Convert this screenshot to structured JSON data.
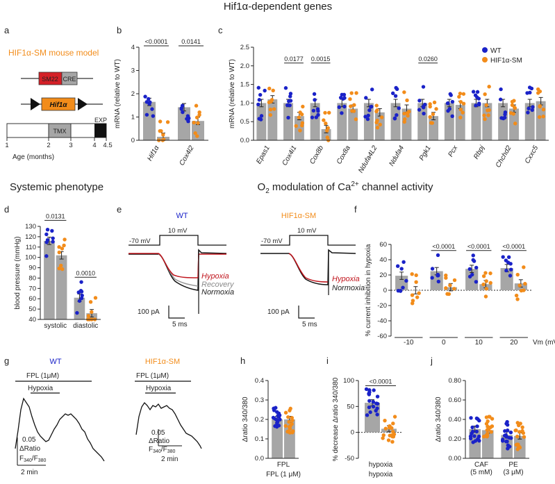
{
  "colors": {
    "wt": "#1a22c8",
    "hif": "#f28c1a",
    "bar": "#a6a6a6",
    "hypoxia": "#c0141c",
    "recovery": "#8a8a8a",
    "normoxia": "#111111",
    "sm22": "#d42027",
    "cre": "#a6a6a6",
    "exp": "#111111"
  },
  "titles": {
    "top": "Hif1α-dependent genes",
    "systemic": "Systemic phenotype",
    "o2_prefix": "O",
    "o2_sub": "2",
    "o2_mid": " modulation of Ca",
    "o2_sup": "2+",
    "o2_suffix": " channel activity"
  },
  "panel_letters": {
    "a": "a",
    "b": "b",
    "c": "c",
    "d": "d",
    "e": "e",
    "f": "f",
    "g": "g",
    "h": "h",
    "i": "i",
    "j": "j"
  },
  "panel_a": {
    "model_title": "HIF1α-SM mouse model",
    "sm22": "SM22",
    "cre": "CRE",
    "hif_gene": "Hif1α",
    "tmx": "TMX",
    "exp": "EXP",
    "ticks": [
      "1",
      "2",
      "3",
      "4",
      "4.5"
    ],
    "xlabel": "Age (months)"
  },
  "panel_e": {
    "wt_title": "WT",
    "hif_title": "HIF1α-SM",
    "hold": "-70 mV",
    "step": "10 mV",
    "hypoxia": "Hypoxia",
    "recovery": "Recovery",
    "normoxia": "Normoxia",
    "scale_current": "100 pA",
    "scale_time": "5 ms"
  },
  "panel_g": {
    "wt_title": "WT",
    "hif_title": "HIF1α-SM",
    "fpl": "FPL  (1μM)",
    "hypoxia": "Hypoxia",
    "scale_val": "0.05",
    "scale_ratio": "ΔRatio",
    "f340": "F",
    "f340_sub": "340",
    "slash": "/",
    "f380": "F",
    "f380_sub": "380",
    "scale_time": "2 min"
  },
  "chart_data": [
    {
      "id": "b",
      "type": "bar",
      "ylabel": "mRNA (relative to WT)",
      "ylim": [
        0,
        4
      ],
      "yticks": [
        "0",
        "1",
        "2",
        "3",
        "4"
      ],
      "categories": [
        "Hif1α",
        "Cox4l2"
      ],
      "series": [
        {
          "name": "WT",
          "values": [
            1.65,
            1.42
          ]
        },
        {
          "name": "HIF1α-SM",
          "values": [
            0.15,
            0.83
          ]
        }
      ],
      "pvalues": [
        "<0.0001",
        "0.0141"
      ]
    },
    {
      "id": "c",
      "type": "bar",
      "ylabel": "mRNA (relative to WT)",
      "ylim": [
        0,
        2.5
      ],
      "yticks": [
        "0.0",
        "0.5",
        "1.0",
        "1.5",
        "2.0",
        "2.5"
      ],
      "categories": [
        "Epas1",
        "Cox4i1",
        "Cox8b",
        "Cox8a",
        "Ndufa4L2",
        "Ndufa4",
        "Pgk1",
        "Pcx",
        "Rbpj",
        "Chchd2",
        "Cxxc5"
      ],
      "series": [
        {
          "name": "WT",
          "values": [
            1.0,
            1.0,
            1.0,
            1.0,
            1.0,
            1.0,
            1.0,
            1.0,
            1.0,
            1.0,
            1.0
          ]
        },
        {
          "name": "HIF1α-SM",
          "values": [
            1.1,
            0.65,
            0.3,
            0.85,
            0.75,
            0.85,
            0.65,
            0.95,
            1.0,
            0.85,
            1.05
          ]
        }
      ],
      "pvalues": [
        {
          "gene": "Cox4i1",
          "p": "0.0177"
        },
        {
          "gene": "Cox8b",
          "p": "0.0015"
        },
        {
          "gene": "Pgk1",
          "p": "0.0260"
        }
      ],
      "legend": [
        "WT",
        "HIF1α-SM"
      ]
    },
    {
      "id": "d",
      "type": "bar",
      "ylabel": "blood pressure (mmHg)",
      "ylim": [
        40,
        130
      ],
      "yticks": [
        "40",
        "50",
        "60",
        "70",
        "80",
        "90",
        "100",
        "110",
        "120",
        "130"
      ],
      "categories": [
        "systolic",
        "diastolic"
      ],
      "series": [
        {
          "name": "WT",
          "values": [
            116,
            61
          ]
        },
        {
          "name": "HIF1α-SM",
          "values": [
            102,
            46
          ]
        }
      ],
      "pvalues": [
        "0.0131",
        "0.0010"
      ]
    },
    {
      "id": "f",
      "type": "bar",
      "ylabel": "% current inhibition in hypoxia",
      "xlabel": "Vm (mV)",
      "ylim": [
        -60,
        60
      ],
      "yticks": [
        "-60",
        "-40",
        "-20",
        "0",
        "20",
        "40",
        "60"
      ],
      "categories": [
        "-10",
        "0",
        "10",
        "20"
      ],
      "series": [
        {
          "name": "WT",
          "values": [
            19,
            25,
            28,
            29
          ]
        },
        {
          "name": "HIF1α-SM",
          "values": [
            0,
            4,
            8,
            9
          ]
        }
      ],
      "pvalues": [
        "<0.0001",
        "<0.0001",
        "<0.0001"
      ]
    },
    {
      "id": "h",
      "type": "bar",
      "ylabel": "Δratio 340/380",
      "xlabel": "FPL (1 μM)",
      "ylim": [
        0,
        0.4
      ],
      "yticks": [
        "0.0",
        "0.1",
        "0.2",
        "0.3",
        "0.4"
      ],
      "categories": [
        "FPL"
      ],
      "series": [
        {
          "name": "WT",
          "values": [
            0.2
          ]
        },
        {
          "name": "HIF1α-SM",
          "values": [
            0.2
          ]
        }
      ]
    },
    {
      "id": "i",
      "type": "bar",
      "ylabel": "% decrease Δratio 340/380",
      "xlabel": "hypoxia",
      "ylim": [
        -50,
        100
      ],
      "yticks": [
        "-50",
        "0",
        "50",
        "100"
      ],
      "categories": [
        "hypoxia"
      ],
      "series": [
        {
          "name": "WT",
          "values": [
            57
          ]
        },
        {
          "name": "HIF1α-SM",
          "values": [
            7
          ]
        }
      ],
      "pvalues": [
        "<0.0001"
      ]
    },
    {
      "id": "j",
      "type": "bar",
      "ylabel": "Δratio 340/380",
      "ylim": [
        0,
        0.8
      ],
      "yticks": [
        "0.00",
        "0.20",
        "0.40",
        "0.60",
        "0.80"
      ],
      "categories": [
        "CAF",
        "PE"
      ],
      "category_sub": [
        "(5 mM)",
        "(3 μM)"
      ],
      "series": [
        {
          "name": "WT",
          "values": [
            0.3,
            0.24
          ]
        },
        {
          "name": "HIF1α-SM",
          "values": [
            0.29,
            0.23
          ]
        }
      ]
    }
  ]
}
